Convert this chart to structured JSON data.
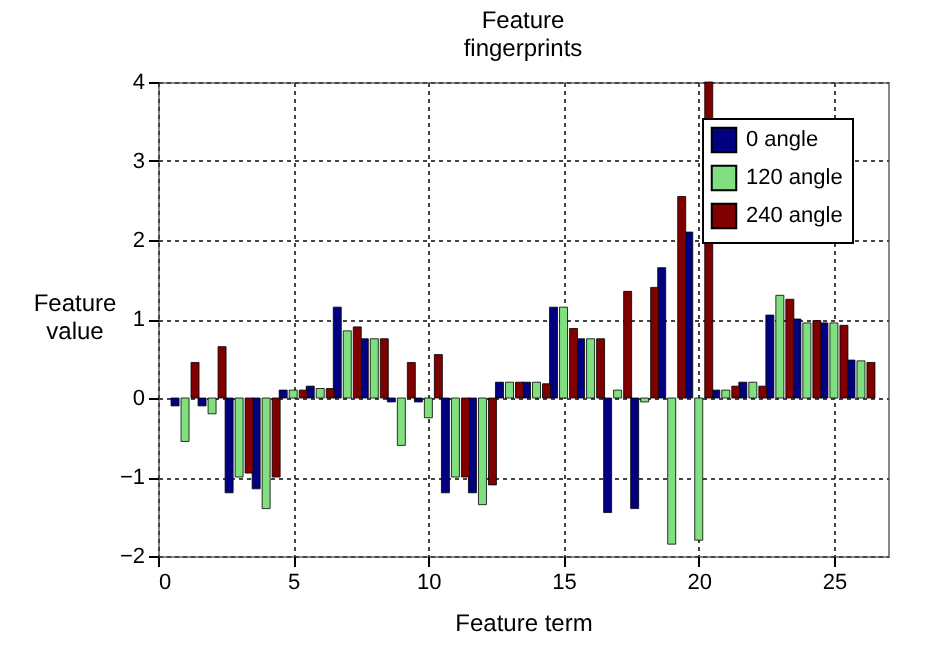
{
  "chart_data": {
    "type": "bar",
    "title": "Feature fingerprints",
    "xlabel": "Feature term",
    "ylabel": "Feature value",
    "x": [
      1,
      2,
      3,
      4,
      5,
      6,
      7,
      8,
      9,
      10,
      11,
      12,
      13,
      14,
      15,
      16,
      17,
      18,
      19,
      20,
      21,
      22,
      23,
      24,
      25,
      26
    ],
    "series": [
      {
        "name": "0  angle",
        "color": "#000080",
        "values": [
          -0.1,
          -0.1,
          -1.2,
          -1.15,
          0.1,
          0.15,
          1.15,
          0.75,
          -0.05,
          -0.05,
          -1.2,
          -1.2,
          0.2,
          0.2,
          1.15,
          0.75,
          -1.45,
          -1.4,
          1.65,
          2.1,
          0.1,
          0.2,
          1.05,
          1.0,
          0.95,
          0.48
        ]
      },
      {
        "name": "120 angle",
        "color": "#80e080",
        "values": [
          -0.55,
          -0.2,
          -1.0,
          -1.4,
          0.1,
          0.12,
          0.85,
          0.75,
          -0.6,
          -0.25,
          -1.0,
          -1.35,
          0.2,
          0.2,
          1.15,
          0.75,
          0.1,
          -0.05,
          -1.85,
          -1.8,
          0.1,
          0.2,
          1.3,
          0.95,
          0.95,
          0.47
        ]
      },
      {
        "name": "240 angle",
        "color": "#800000",
        "values": [
          0.45,
          0.65,
          -0.95,
          -1.0,
          0.1,
          0.12,
          0.9,
          0.75,
          0.45,
          0.55,
          -1.0,
          -1.1,
          0.2,
          0.18,
          0.88,
          0.75,
          1.35,
          1.4,
          2.55,
          4.0,
          0.15,
          0.15,
          1.25,
          0.98,
          0.92,
          0.45
        ]
      }
    ],
    "xlim": [
      0,
      27
    ],
    "xticks": [
      0,
      5,
      10,
      15,
      20,
      25
    ],
    "ylim": [
      -2,
      4
    ],
    "yticks": [
      -2,
      -1,
      0,
      1,
      2,
      3,
      4
    ],
    "grid": true,
    "legend": "top right"
  }
}
